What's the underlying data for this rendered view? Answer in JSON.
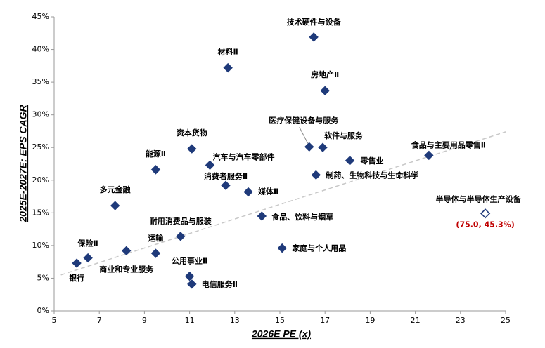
{
  "chart_data": {
    "type": "scatter",
    "x_label": "2026E PE (x)",
    "y_label": "2025E-2027E: EPS CAGR",
    "xlim": [
      5,
      25
    ],
    "xticks": [
      5,
      7,
      9,
      11,
      13,
      15,
      17,
      19,
      21,
      23,
      25
    ],
    "ylim": [
      0,
      45
    ],
    "yticks": [
      {
        "value": 0,
        "label": "0%"
      },
      {
        "value": 5,
        "label": "5%"
      },
      {
        "value": 10,
        "label": "10%"
      },
      {
        "value": 15,
        "label": "15%"
      },
      {
        "value": 20,
        "label": "20%"
      },
      {
        "value": 25,
        "label": "25%"
      },
      {
        "value": 30,
        "label": "30%"
      },
      {
        "value": 35,
        "label": "35%"
      },
      {
        "value": 40,
        "label": "40%"
      },
      {
        "value": 45,
        "label": "45%"
      }
    ],
    "trendline": {
      "color": "#c8c8c8",
      "x": [
        5.3,
        25
      ],
      "y": [
        5.5,
        27.4
      ]
    },
    "series": [
      {
        "color": "#1f3a7a",
        "marker": "filled",
        "labels": [
          "技术硬件与设备",
          "材料Ⅱ",
          "房地产Ⅱ",
          "医疗保健设备与服务",
          "软件与服务",
          "资本货物",
          "食品与主要用品零售Ⅱ",
          "零售业",
          "汽车与汽车零部件",
          "能源Ⅱ",
          "制药、生物科技与生命科学",
          "消费者服务Ⅱ",
          "媒体Ⅱ",
          "多元金融",
          "食品、饮料与烟草",
          "耐用消费品与服装",
          "家庭与个人用品",
          "保险Ⅱ",
          "商业和专业服务",
          "运输",
          "银行",
          "公用事业Ⅱ",
          "电信服务Ⅱ"
        ],
        "x": [
          16.5,
          12.7,
          17.0,
          16.3,
          16.9,
          11.1,
          21.6,
          18.1,
          11.9,
          9.5,
          16.6,
          12.6,
          13.6,
          7.7,
          14.2,
          10.6,
          15.1,
          6.5,
          8.2,
          9.5,
          6.0,
          11.0,
          11.1
        ],
        "y": [
          41.9,
          37.2,
          33.7,
          25.1,
          25.0,
          24.8,
          23.8,
          23.0,
          22.3,
          21.6,
          20.8,
          19.2,
          18.2,
          16.1,
          14.5,
          11.4,
          9.6,
          8.1,
          9.2,
          8.8,
          7.3,
          5.3,
          4.1
        ]
      },
      {
        "color": "#1f3a7a",
        "marker": "hollow",
        "labels": [
          "半导体与半导体生产设备"
        ],
        "x": [
          24.1
        ],
        "y": [
          14.9
        ],
        "annotation": "(75.0, 45.3%)",
        "annotation_color": "#c00000"
      }
    ],
    "title_color": "#c00000"
  }
}
